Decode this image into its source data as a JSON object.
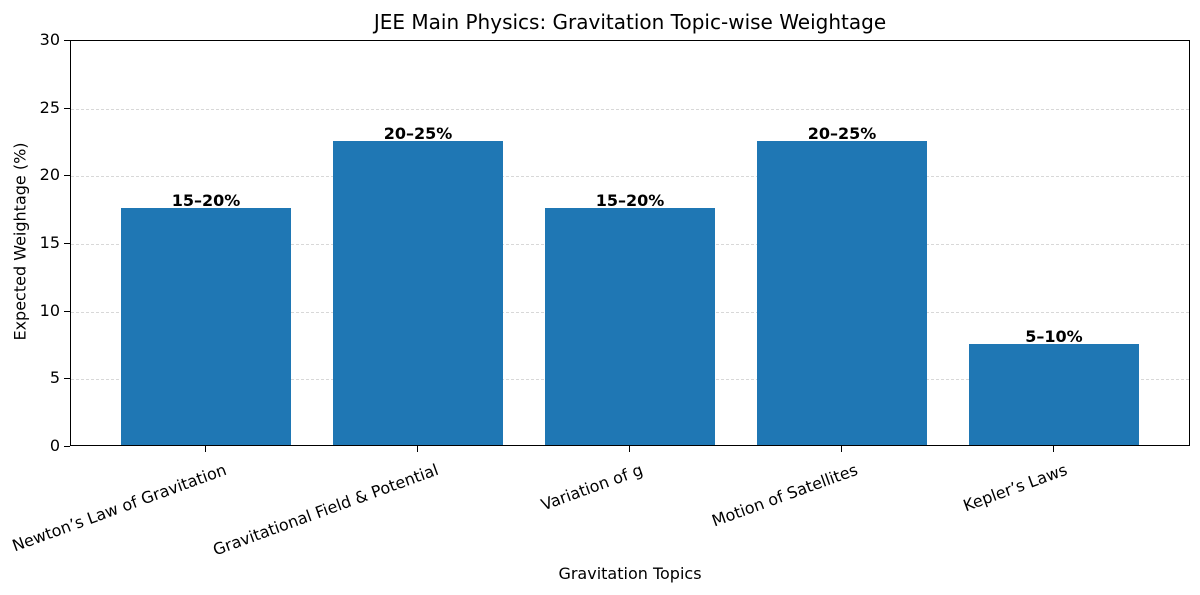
{
  "chart_data": {
    "type": "bar",
    "title": "JEE Main Physics: Gravitation Topic-wise Weightage",
    "xlabel": "Gravitation Topics",
    "ylabel": "Expected Weightage (%)",
    "categories": [
      "Newton’s Law of Gravitation",
      "Gravitational Field & Potential",
      "Variation of g",
      "Motion of Satellites",
      "Kepler’s Laws"
    ],
    "values": [
      17.5,
      22.5,
      17.5,
      22.5,
      7.5
    ],
    "bar_labels": [
      "15–20%",
      "20–25%",
      "15–20%",
      "20–25%",
      "5–10%"
    ],
    "ylim": [
      0,
      30
    ],
    "yticks": [
      "0",
      "5",
      "10",
      "15",
      "20",
      "25",
      "30"
    ],
    "grid": "y dashed",
    "bar_color": "#1f77b4"
  }
}
